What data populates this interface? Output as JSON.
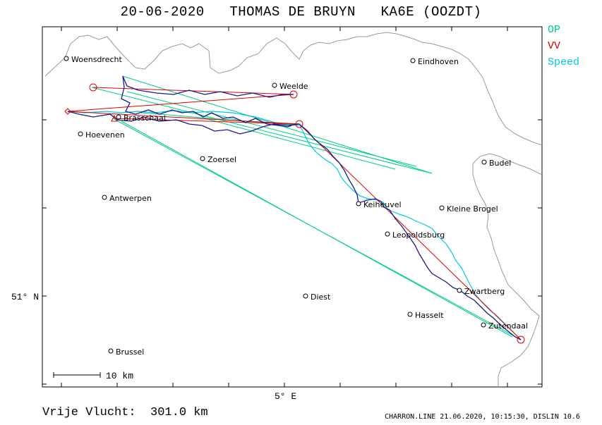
{
  "title": "20-06-2020   THOMAS DE BRUYN   KA6E (OOZDT)",
  "legend": [
    {
      "label": "OP",
      "color": "#00cc88"
    },
    {
      "label": "VV",
      "color": "#e00000"
    },
    {
      "label": "Speed",
      "color": "#00c8e0"
    }
  ],
  "axis": {
    "lat_label": "51° N",
    "lon_label": "5° E"
  },
  "scale_label": "10 km",
  "footer": {
    "distance": "Vrije Vlucht:  301.0 km",
    "info": "CHARRON.LINE 21.06.2020, 10:15:30, DISLIN 10.6"
  },
  "places": [
    {
      "name": "Woensdrecht"
    },
    {
      "name": "Eindhoven"
    },
    {
      "name": "Weelde"
    },
    {
      "name": "Brasschaat"
    },
    {
      "name": "Hoevenen"
    },
    {
      "name": "Zoersel"
    },
    {
      "name": "Budel"
    },
    {
      "name": "Antwerpen"
    },
    {
      "name": "Keiheuvel"
    },
    {
      "name": "Kleine Brogel"
    },
    {
      "name": "Leopoldsburg"
    },
    {
      "name": "Zwartberg"
    },
    {
      "name": "Diest"
    },
    {
      "name": "Hasselt"
    },
    {
      "name": "Zutendaal"
    },
    {
      "name": "Brussel"
    }
  ]
}
